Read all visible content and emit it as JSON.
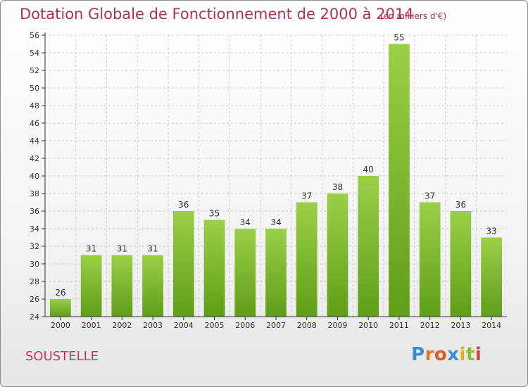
{
  "header": {
    "title": "Dotation Globale de Fonctionnement de 2000 à 2014",
    "subtitle": "(en milliers d'€)"
  },
  "footer": {
    "commune": "SOUSTELLE",
    "logo_letters": [
      "P",
      "r",
      "o",
      "x",
      "i",
      "t",
      "i"
    ],
    "logo_colors": [
      "#3a8ed8",
      "#e07820",
      "#e05a20",
      "#3a8ed8",
      "#e0b020",
      "#8abf30",
      "#e04040"
    ]
  },
  "colors": {
    "bar_top": "#9ccf48",
    "bar_bottom": "#5f9e16",
    "axis": "#333333",
    "grid": "#cccccc",
    "text": "#333333"
  },
  "chart_data": {
    "type": "bar",
    "title": "Dotation Globale de Fonctionnement de 2000 à 2014",
    "subtitle": "(en milliers d'€)",
    "xlabel": "",
    "ylabel": "",
    "categories": [
      "2000",
      "2001",
      "2002",
      "2003",
      "2004",
      "2005",
      "2006",
      "2007",
      "2008",
      "2009",
      "2010",
      "2011",
      "2012",
      "2013",
      "2014"
    ],
    "values": [
      26,
      31,
      31,
      31,
      36,
      35,
      34,
      34,
      37,
      38,
      40,
      55,
      37,
      36,
      33
    ],
    "ylim": [
      24,
      56
    ],
    "yticks": [
      24,
      26,
      28,
      30,
      32,
      34,
      36,
      38,
      40,
      42,
      44,
      46,
      48,
      50,
      52,
      54,
      56
    ],
    "grid": true,
    "legend": "none",
    "data_labels": true
  }
}
